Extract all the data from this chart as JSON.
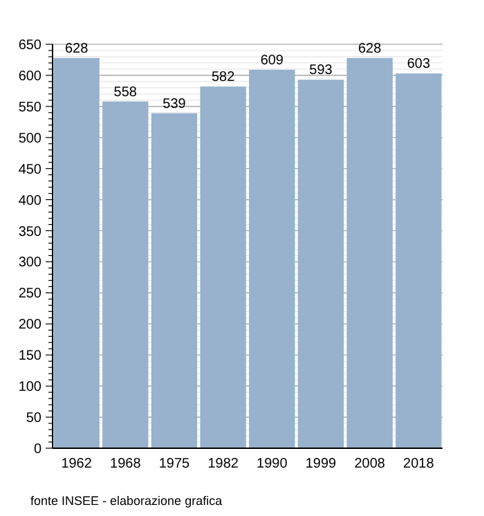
{
  "chart_data": {
    "type": "bar",
    "categories": [
      "1962",
      "1968",
      "1975",
      "1982",
      "1990",
      "1999",
      "2008",
      "2018"
    ],
    "values": [
      628,
      558,
      539,
      582,
      609,
      593,
      628,
      603
    ],
    "color": "#98b2cd",
    "data_labels": true,
    "grid": "y",
    "ylim": [
      0,
      650
    ],
    "yticks": [
      0,
      {
        "value": 10,
        "label": null
      },
      {
        "value": 20,
        "label": null
      },
      {
        "value": 30,
        "label": null
      },
      {
        "value": 40,
        "label": null
      },
      50,
      {
        "value": 60,
        "label": null
      },
      {
        "value": 70,
        "label": null
      },
      {
        "value": 80,
        "label": null
      },
      {
        "value": 90,
        "label": null
      },
      100,
      {
        "value": 110,
        "label": null
      },
      {
        "value": 120,
        "label": null
      },
      {
        "value": 130,
        "label": null
      },
      {
        "value": 140,
        "label": null
      },
      150,
      {
        "value": 160,
        "label": null
      },
      {
        "value": 170,
        "label": null
      },
      {
        "value": 180,
        "label": null
      },
      {
        "value": 190,
        "label": null
      },
      200,
      {
        "value": 210,
        "label": null
      },
      {
        "value": 220,
        "label": null
      },
      {
        "value": 230,
        "label": null
      },
      {
        "value": 240,
        "label": null
      },
      250,
      {
        "value": 260,
        "label": null
      },
      {
        "value": 270,
        "label": null
      },
      {
        "value": 280,
        "label": null
      },
      {
        "value": 290,
        "label": null
      },
      300,
      {
        "value": 310,
        "label": null
      },
      {
        "value": 320,
        "label": null
      },
      {
        "value": 330,
        "label": null
      },
      {
        "value": 340,
        "label": null
      },
      350,
      {
        "value": 360,
        "label": null
      },
      {
        "value": 370,
        "label": null
      },
      {
        "value": 380,
        "label": null
      },
      {
        "value": 390,
        "label": null
      },
      400,
      {
        "value": 410,
        "label": null
      },
      {
        "value": 420,
        "label": null
      },
      {
        "value": 430,
        "label": null
      },
      {
        "value": 440,
        "label": null
      },
      450,
      {
        "value": 460,
        "label": null
      },
      {
        "value": 470,
        "label": null
      },
      {
        "value": 480,
        "label": null
      },
      {
        "value": 490,
        "label": null
      },
      500,
      {
        "value": 510,
        "label": null
      },
      {
        "value": 520,
        "label": null
      },
      {
        "value": 530,
        "label": null
      },
      {
        "value": 540,
        "label": null
      },
      550,
      {
        "value": 560,
        "label": null
      },
      {
        "value": 570,
        "label": null
      },
      {
        "value": 580,
        "label": null
      },
      {
        "value": 590,
        "label": null
      },
      600,
      {
        "value": 610,
        "label": null
      },
      {
        "value": 620,
        "label": null
      },
      {
        "value": 630,
        "label": null
      },
      {
        "value": 640,
        "label": null
      },
      650
    ],
    "annotations": [
      "fonte INSEE - elaborazione grafica"
    ]
  }
}
